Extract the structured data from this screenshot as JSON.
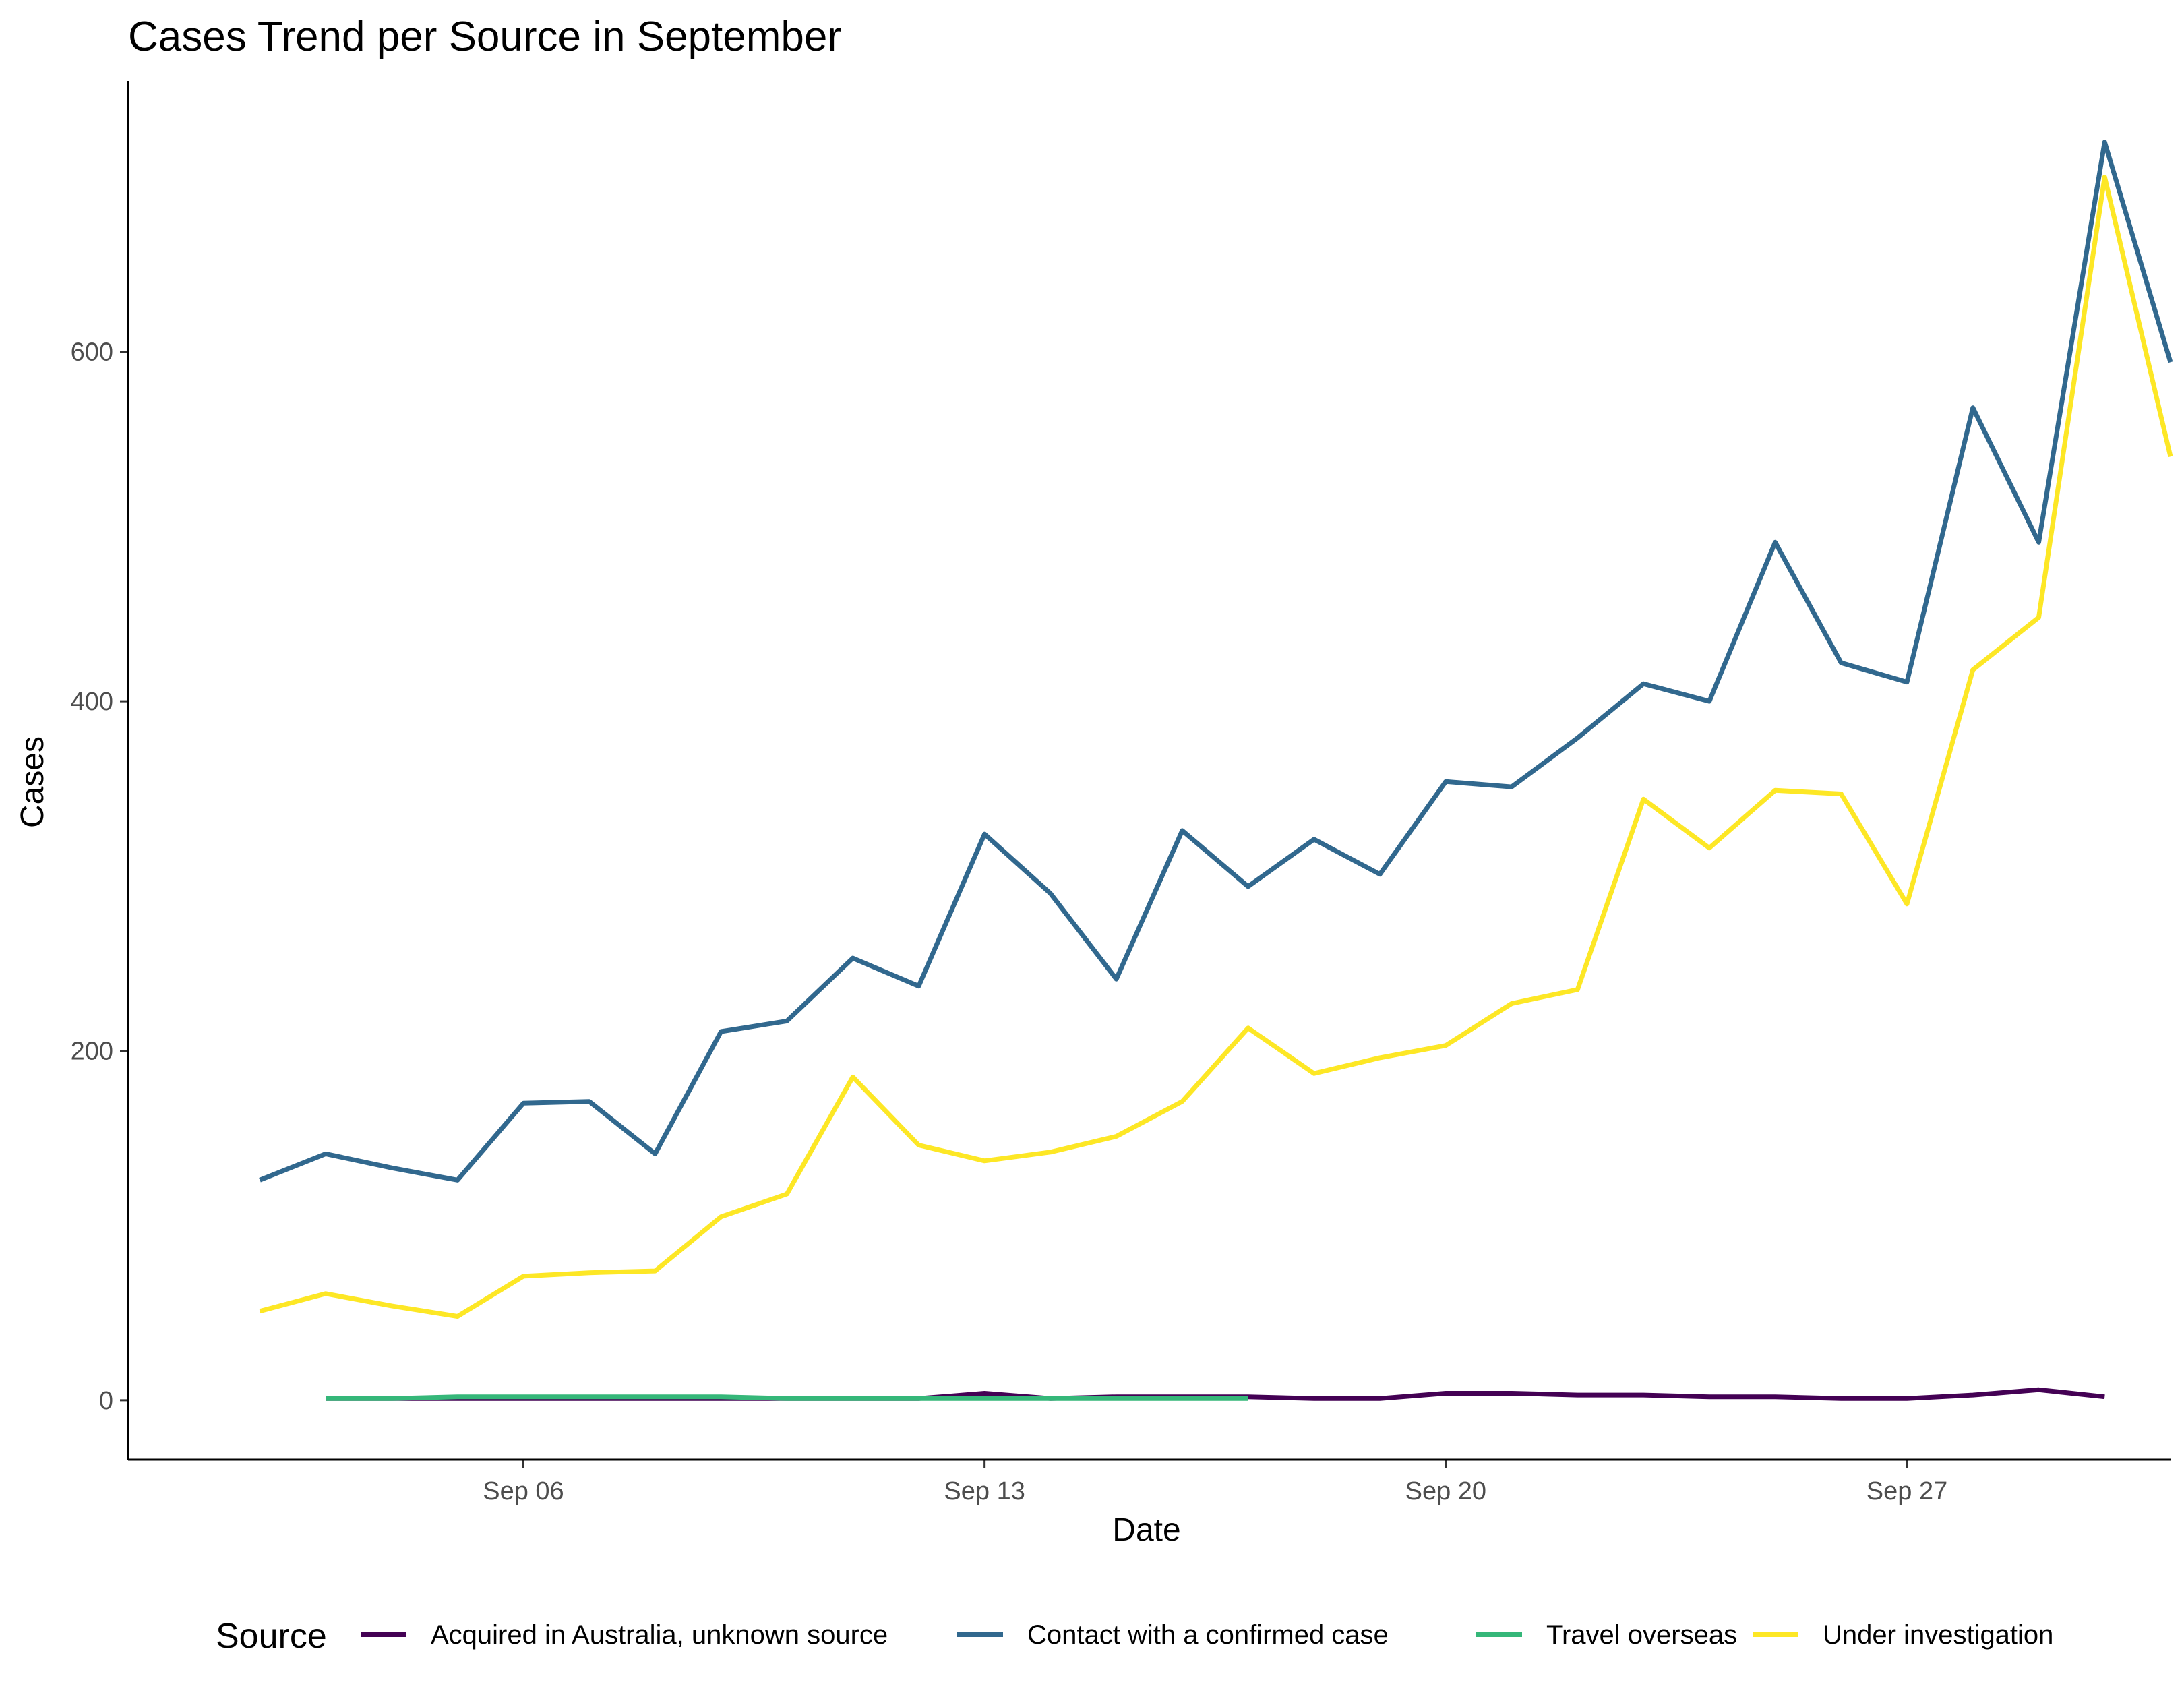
{
  "chart_data": {
    "type": "line",
    "title": "Cases Trend per Source in September",
    "xlabel": "Date",
    "ylabel": "Cases",
    "x_ticks": [
      {
        "date": "2020-09-06",
        "label": "Sep 06"
      },
      {
        "date": "2020-09-13",
        "label": "Sep 13"
      },
      {
        "date": "2020-09-20",
        "label": "Sep 20"
      },
      {
        "date": "2020-09-27",
        "label": "Sep 27"
      }
    ],
    "y_ticks": [
      0,
      200,
      400,
      600
    ],
    "xlim": [
      "2020-08-31",
      "2020-10-01"
    ],
    "ylim": [
      -34,
      755
    ],
    "grid": false,
    "legend": {
      "title": "Source",
      "position": "bottom"
    },
    "series": [
      {
        "name": "Acquired in Australia, unknown source",
        "color": "#440154",
        "points": [
          [
            "2020-09-03",
            1
          ],
          [
            "2020-09-04",
            1
          ],
          [
            "2020-09-05",
            1
          ],
          [
            "2020-09-06",
            1
          ],
          [
            "2020-09-07",
            1
          ],
          [
            "2020-09-08",
            1
          ],
          [
            "2020-09-09",
            1
          ],
          [
            "2020-09-10",
            1
          ],
          [
            "2020-09-11",
            1
          ],
          [
            "2020-09-12",
            1
          ],
          [
            "2020-09-13",
            4
          ],
          [
            "2020-09-14",
            1
          ],
          [
            "2020-09-15",
            2
          ],
          [
            "2020-09-16",
            2
          ],
          [
            "2020-09-17",
            2
          ],
          [
            "2020-09-18",
            1
          ],
          [
            "2020-09-19",
            1
          ],
          [
            "2020-09-20",
            4
          ],
          [
            "2020-09-21",
            4
          ],
          [
            "2020-09-22",
            3
          ],
          [
            "2020-09-23",
            3
          ],
          [
            "2020-09-24",
            2
          ],
          [
            "2020-09-25",
            2
          ],
          [
            "2020-09-26",
            1
          ],
          [
            "2020-09-27",
            1
          ],
          [
            "2020-09-28",
            3
          ],
          [
            "2020-09-29",
            6
          ],
          [
            "2020-09-30",
            2
          ]
        ]
      },
      {
        "name": "Contact with a confirmed case",
        "color": "#31688e",
        "points": [
          [
            "2020-09-02",
            126
          ],
          [
            "2020-09-03",
            141
          ],
          [
            "2020-09-04",
            133
          ],
          [
            "2020-09-05",
            126
          ],
          [
            "2020-09-06",
            170
          ],
          [
            "2020-09-07",
            171
          ],
          [
            "2020-09-08",
            141
          ],
          [
            "2020-09-09",
            211
          ],
          [
            "2020-09-10",
            217
          ],
          [
            "2020-09-11",
            253
          ],
          [
            "2020-09-12",
            237
          ],
          [
            "2020-09-13",
            324
          ],
          [
            "2020-09-14",
            290
          ],
          [
            "2020-09-15",
            241
          ],
          [
            "2020-09-16",
            326
          ],
          [
            "2020-09-17",
            294
          ],
          [
            "2020-09-18",
            321
          ],
          [
            "2020-09-19",
            301
          ],
          [
            "2020-09-20",
            354
          ],
          [
            "2020-09-21",
            351
          ],
          [
            "2020-09-22",
            379
          ],
          [
            "2020-09-23",
            410
          ],
          [
            "2020-09-24",
            400
          ],
          [
            "2020-09-25",
            491
          ],
          [
            "2020-09-26",
            422
          ],
          [
            "2020-09-27",
            411
          ],
          [
            "2020-09-28",
            568
          ],
          [
            "2020-09-29",
            491
          ],
          [
            "2020-09-30",
            720
          ],
          [
            "2020-10-01",
            594
          ]
        ]
      },
      {
        "name": "Travel overseas",
        "color": "#35b779",
        "points": [
          [
            "2020-09-03",
            1
          ],
          [
            "2020-09-04",
            1
          ],
          [
            "2020-09-05",
            2
          ],
          [
            "2020-09-06",
            2
          ],
          [
            "2020-09-07",
            2
          ],
          [
            "2020-09-08",
            2
          ],
          [
            "2020-09-09",
            2
          ],
          [
            "2020-09-10",
            1
          ],
          [
            "2020-09-11",
            1
          ],
          [
            "2020-09-12",
            1
          ],
          [
            "2020-09-13",
            1
          ],
          [
            "2020-09-14",
            1
          ],
          [
            "2020-09-15",
            1
          ],
          [
            "2020-09-16",
            1
          ],
          [
            "2020-09-17",
            1
          ]
        ]
      },
      {
        "name": "Under investigation",
        "color": "#fde725",
        "points": [
          [
            "2020-09-02",
            51
          ],
          [
            "2020-09-03",
            61
          ],
          [
            "2020-09-04",
            54
          ],
          [
            "2020-09-05",
            48
          ],
          [
            "2020-09-06",
            71
          ],
          [
            "2020-09-07",
            73
          ],
          [
            "2020-09-08",
            74
          ],
          [
            "2020-09-09",
            105
          ],
          [
            "2020-09-10",
            118
          ],
          [
            "2020-09-11",
            185
          ],
          [
            "2020-09-12",
            146
          ],
          [
            "2020-09-13",
            137
          ],
          [
            "2020-09-14",
            142
          ],
          [
            "2020-09-15",
            151
          ],
          [
            "2020-09-16",
            171
          ],
          [
            "2020-09-17",
            213
          ],
          [
            "2020-09-18",
            187
          ],
          [
            "2020-09-19",
            196
          ],
          [
            "2020-09-20",
            203
          ],
          [
            "2020-09-21",
            227
          ],
          [
            "2020-09-22",
            235
          ],
          [
            "2020-09-23",
            344
          ],
          [
            "2020-09-24",
            316
          ],
          [
            "2020-09-25",
            349
          ],
          [
            "2020-09-26",
            347
          ],
          [
            "2020-09-27",
            284
          ],
          [
            "2020-09-28",
            418
          ],
          [
            "2020-09-29",
            448
          ],
          [
            "2020-09-30",
            700
          ],
          [
            "2020-10-01",
            540
          ]
        ]
      }
    ]
  }
}
